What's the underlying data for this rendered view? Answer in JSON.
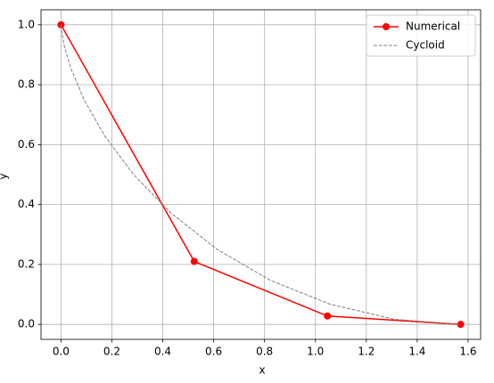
{
  "chart_data": {
    "type": "line",
    "x_label": "x",
    "y_label": "y",
    "xlim": [
      -0.0785,
      1.6493
    ],
    "ylim": [
      -0.05,
      1.05
    ],
    "xticks": [
      {
        "value": 0,
        "label": "0.0"
      },
      {
        "value": 0.2,
        "label": "0.2"
      },
      {
        "value": 0.4,
        "label": "0.4"
      },
      {
        "value": 0.6,
        "label": "0.6"
      },
      {
        "value": 0.8,
        "label": "0.8"
      },
      {
        "value": 1.0,
        "label": "1.0"
      },
      {
        "value": 1.2,
        "label": "1.2"
      },
      {
        "value": 1.4,
        "label": "1.4"
      },
      {
        "value": 1.6,
        "label": "1.6"
      }
    ],
    "yticks": [
      {
        "value": 0,
        "label": "0.0"
      },
      {
        "value": 0.2,
        "label": "0.2"
      },
      {
        "value": 0.4,
        "label": "0.4"
      },
      {
        "value": 0.6,
        "label": "0.6"
      },
      {
        "value": 0.8,
        "label": "0.8"
      },
      {
        "value": 1.0,
        "label": "1.0"
      }
    ],
    "grid": true,
    "legend": "upper right",
    "series": [
      {
        "name": "Numerical",
        "color": "#ff0000",
        "style": "solid",
        "marker": true,
        "x": [
          0,
          0.5236,
          1.0472,
          1.5708
        ],
        "values": [
          1,
          0.21,
          0.028,
          0
        ]
      },
      {
        "name": "Cycloid",
        "color": "#808080",
        "style": "dashed",
        "marker": false,
        "x": [
          0,
          0.0015,
          0.0118,
          0.0392,
          0.0906,
          0.1715,
          0.2854,
          0.4333,
          0.6142,
          0.8245,
          1.059,
          1.3105,
          1.5708
        ],
        "values": [
          1,
          0.983,
          0.933,
          0.8536,
          0.75,
          0.6294,
          0.5,
          0.3706,
          0.25,
          0.1464,
          0.067,
          0.017,
          0
        ]
      }
    ]
  }
}
